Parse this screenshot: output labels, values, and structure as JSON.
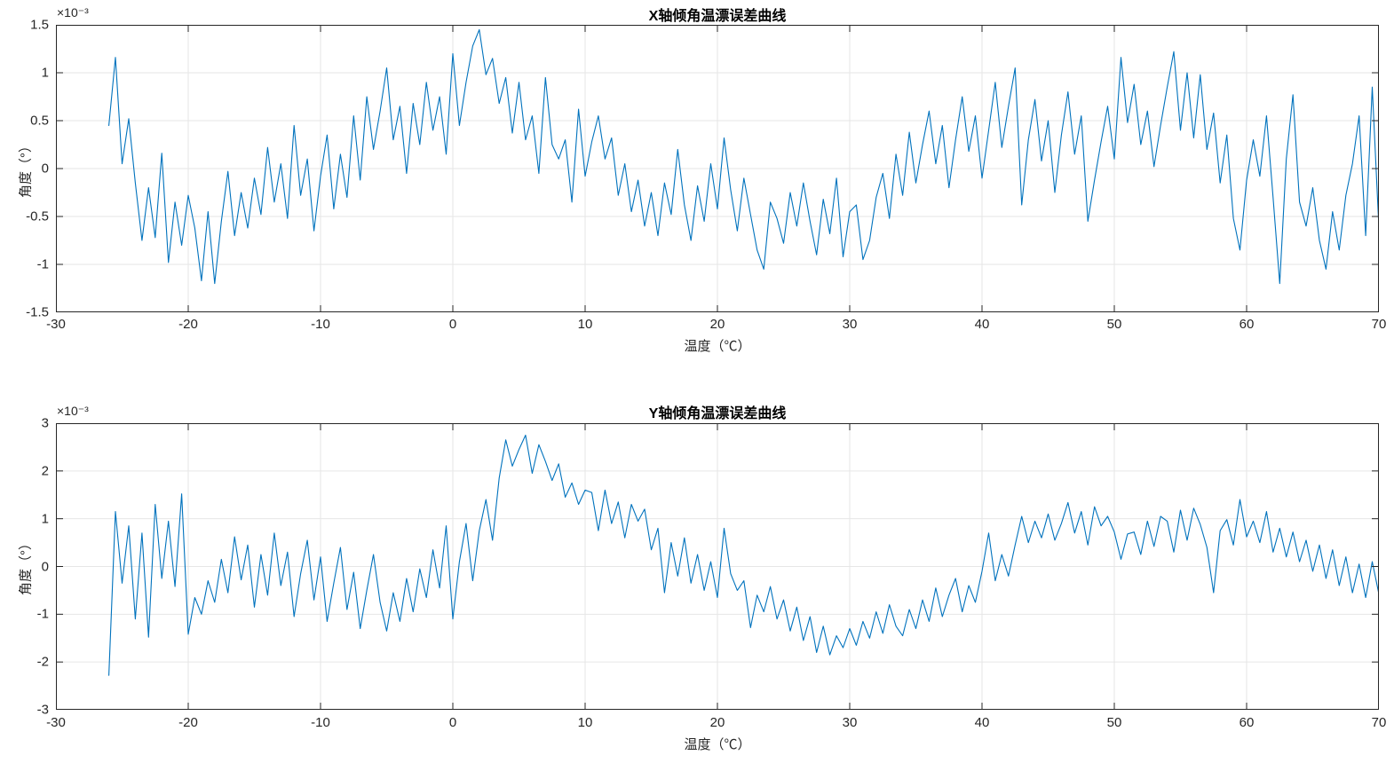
{
  "figure": {
    "background": "#ffffff",
    "line_color": "#0072BD",
    "grid_color": "#e6e6e6",
    "axis_color": "#262626"
  },
  "chart_data": [
    {
      "type": "line",
      "title": "X轴倾角温漂误差曲线",
      "xlabel": "温度（℃）",
      "ylabel": "角度（°）",
      "y_scale_label": "×10⁻³",
      "grid": true,
      "legend": "none",
      "xlim": [
        -30,
        70
      ],
      "ylim_milli": [
        -1.5,
        1.5
      ],
      "xticks": [
        -30,
        -20,
        -10,
        0,
        10,
        20,
        30,
        40,
        50,
        60,
        70
      ],
      "xtick_labels": [
        "-30",
        "-20",
        "-10",
        "0",
        "10",
        "20",
        "30",
        "40",
        "50",
        "60",
        "70"
      ],
      "yticks_milli": [
        -1.5,
        -1,
        -0.5,
        0,
        0.5,
        1,
        1.5
      ],
      "ytick_labels": [
        "-1.5",
        "-1",
        "-0.5",
        "0",
        "0.5",
        "1",
        "1.5"
      ],
      "x_start": -26,
      "x_step": 0.5,
      "y_milli_deg": [
        0.45,
        1.16,
        0.05,
        0.52,
        -0.15,
        -0.75,
        -0.2,
        -0.72,
        0.16,
        -0.98,
        -0.35,
        -0.8,
        -0.28,
        -0.62,
        -1.17,
        -0.45,
        -1.2,
        -0.55,
        -0.03,
        -0.7,
        -0.25,
        -0.62,
        -0.1,
        -0.48,
        0.22,
        -0.35,
        0.05,
        -0.52,
        0.45,
        -0.28,
        0.1,
        -0.65,
        -0.08,
        0.35,
        -0.42,
        0.15,
        -0.3,
        0.55,
        -0.12,
        0.75,
        0.2,
        0.6,
        1.05,
        0.3,
        0.65,
        -0.05,
        0.68,
        0.25,
        0.9,
        0.4,
        0.75,
        0.15,
        1.2,
        0.45,
        0.9,
        1.28,
        1.45,
        0.98,
        1.15,
        0.68,
        0.95,
        0.37,
        0.9,
        0.3,
        0.55,
        -0.05,
        0.95,
        0.25,
        0.1,
        0.3,
        -0.35,
        0.62,
        -0.08,
        0.28,
        0.55,
        0.1,
        0.32,
        -0.28,
        0.05,
        -0.45,
        -0.12,
        -0.6,
        -0.25,
        -0.7,
        -0.15,
        -0.48,
        0.2,
        -0.38,
        -0.75,
        -0.18,
        -0.55,
        0.05,
        -0.42,
        0.32,
        -0.22,
        -0.65,
        -0.1,
        -0.48,
        -0.85,
        -1.05,
        -0.35,
        -0.52,
        -0.78,
        -0.25,
        -0.6,
        -0.15,
        -0.55,
        -0.9,
        -0.32,
        -0.68,
        -0.1,
        -0.92,
        -0.45,
        -0.38,
        -0.95,
        -0.75,
        -0.3,
        -0.05,
        -0.52,
        0.15,
        -0.28,
        0.38,
        -0.15,
        0.25,
        0.6,
        0.05,
        0.45,
        -0.2,
        0.3,
        0.75,
        0.18,
        0.55,
        -0.1,
        0.4,
        0.9,
        0.22,
        0.65,
        1.05,
        -0.38,
        0.3,
        0.72,
        0.08,
        0.5,
        -0.25,
        0.35,
        0.8,
        0.15,
        0.55,
        -0.55,
        -0.12,
        0.28,
        0.65,
        0.1,
        1.16,
        0.48,
        0.88,
        0.25,
        0.6,
        0.02,
        0.45,
        0.85,
        1.22,
        0.4,
        1.0,
        0.32,
        0.98,
        0.2,
        0.58,
        -0.15,
        0.35,
        -0.52,
        -0.85,
        -0.12,
        0.3,
        -0.08,
        0.55,
        -0.3,
        -1.2,
        0.1,
        0.77,
        -0.35,
        -0.6,
        -0.2,
        -0.75,
        -1.05,
        -0.45,
        -0.85,
        -0.28,
        0.05,
        0.55,
        -0.7,
        0.85,
        -0.62
      ]
    },
    {
      "type": "line",
      "title": "Y轴倾角温漂误差曲线",
      "xlabel": "温度（℃）",
      "ylabel": "角度（°）",
      "y_scale_label": "×10⁻³",
      "grid": true,
      "legend": "none",
      "xlim": [
        -30,
        70
      ],
      "ylim_milli": [
        -3,
        3
      ],
      "xticks": [
        -30,
        -20,
        -10,
        0,
        10,
        20,
        30,
        40,
        50,
        60,
        70
      ],
      "xtick_labels": [
        "-30",
        "-20",
        "-10",
        "0",
        "10",
        "20",
        "30",
        "40",
        "50",
        "60",
        "70"
      ],
      "yticks_milli": [
        -3,
        -2,
        -1,
        0,
        1,
        2,
        3
      ],
      "ytick_labels": [
        "-3",
        "-2",
        "-1",
        "0",
        "1",
        "2",
        "3"
      ],
      "x_start": -26,
      "x_step": 0.5,
      "y_milli_deg": [
        -2.28,
        1.15,
        -0.35,
        0.85,
        -1.1,
        0.7,
        -1.48,
        1.3,
        -0.25,
        0.95,
        -0.42,
        1.52,
        -1.42,
        -0.65,
        -1.0,
        -0.3,
        -0.75,
        0.15,
        -0.55,
        0.62,
        -0.28,
        0.45,
        -0.85,
        0.25,
        -0.6,
        0.7,
        -0.4,
        0.3,
        -1.05,
        -0.15,
        0.55,
        -0.7,
        0.2,
        -1.15,
        -0.35,
        0.4,
        -0.9,
        -0.12,
        -1.3,
        -0.5,
        0.25,
        -0.75,
        -1.35,
        -0.55,
        -1.15,
        -0.25,
        -0.95,
        -0.05,
        -0.65,
        0.35,
        -0.45,
        0.85,
        -1.1,
        0.1,
        0.9,
        -0.3,
        0.75,
        1.4,
        0.55,
        1.85,
        2.65,
        2.1,
        2.45,
        2.75,
        1.95,
        2.55,
        2.2,
        1.8,
        2.15,
        1.45,
        1.75,
        1.3,
        1.6,
        1.55,
        0.75,
        1.6,
        0.9,
        1.35,
        0.6,
        1.3,
        0.95,
        1.2,
        0.35,
        0.8,
        -0.55,
        0.5,
        -0.2,
        0.6,
        -0.35,
        0.25,
        -0.5,
        0.1,
        -0.65,
        0.8,
        -0.15,
        -0.5,
        -0.3,
        -1.28,
        -0.6,
        -0.95,
        -0.42,
        -1.1,
        -0.7,
        -1.35,
        -0.85,
        -1.55,
        -1.05,
        -1.8,
        -1.25,
        -1.85,
        -1.45,
        -1.7,
        -1.3,
        -1.65,
        -1.15,
        -1.5,
        -0.95,
        -1.4,
        -0.8,
        -1.25,
        -1.45,
        -0.9,
        -1.3,
        -0.7,
        -1.15,
        -0.45,
        -1.05,
        -0.6,
        -0.25,
        -0.95,
        -0.4,
        -0.75,
        -0.1,
        0.7,
        -0.3,
        0.25,
        -0.2,
        0.45,
        1.05,
        0.5,
        0.95,
        0.6,
        1.1,
        0.55,
        0.9,
        1.34,
        0.7,
        1.15,
        0.45,
        1.25,
        0.85,
        1.05,
        0.72,
        0.15,
        0.68,
        0.72,
        0.25,
        0.95,
        0.42,
        1.05,
        0.95,
        0.3,
        1.18,
        0.55,
        1.22,
        0.88,
        0.4,
        -0.55,
        0.75,
        0.98,
        0.45,
        1.4,
        0.62,
        0.95,
        0.5,
        1.15,
        0.3,
        0.8,
        0.2,
        0.72,
        0.1,
        0.55,
        -0.1,
        0.45,
        -0.25,
        0.35,
        -0.4,
        0.2,
        -0.55,
        0.05,
        -0.65,
        0.1,
        -0.58
      ]
    }
  ]
}
